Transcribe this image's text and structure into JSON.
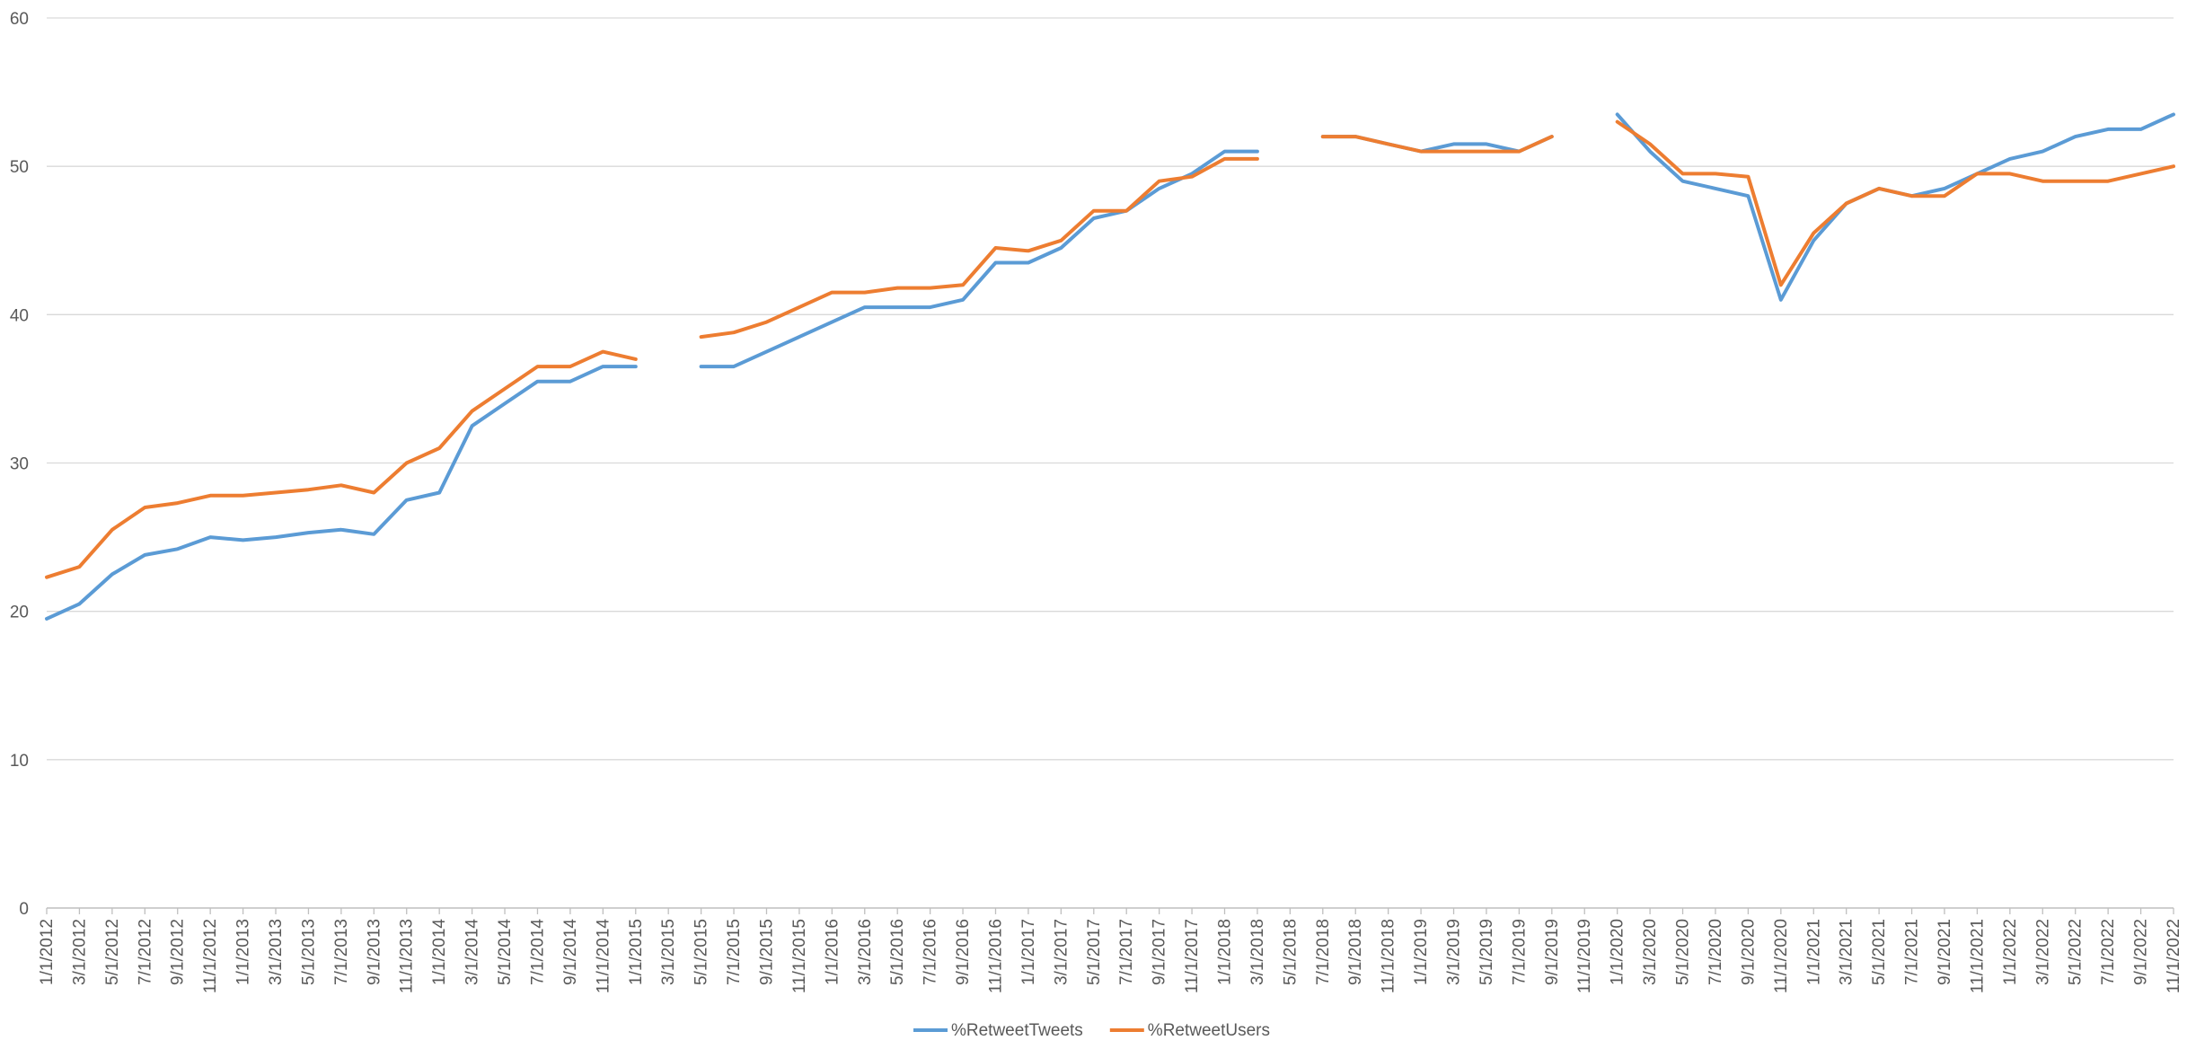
{
  "chart_data": {
    "type": "line",
    "title": "",
    "xlabel": "",
    "ylabel": "",
    "ylim": [
      0,
      60
    ],
    "yticks": [
      0,
      10,
      20,
      30,
      40,
      50,
      60
    ],
    "grid": "horizontal",
    "legend_position": "bottom",
    "x_tick_labels": [
      "1/1/2012",
      "3/1/2012",
      "5/1/2012",
      "7/1/2012",
      "9/1/2012",
      "11/1/2012",
      "1/1/2013",
      "3/1/2013",
      "5/1/2013",
      "7/1/2013",
      "9/1/2013",
      "11/1/2013",
      "1/1/2014",
      "3/1/2014",
      "5/1/2014",
      "7/1/2014",
      "9/1/2014",
      "11/1/2014",
      "1/1/2015",
      "3/1/2015",
      "5/1/2015",
      "7/1/2015",
      "9/1/2015",
      "11/1/2015",
      "1/1/2016",
      "3/1/2016",
      "5/1/2016",
      "7/1/2016",
      "9/1/2016",
      "11/1/2016",
      "1/1/2017",
      "3/1/2017",
      "5/1/2017",
      "7/1/2017",
      "9/1/2017",
      "11/1/2017",
      "1/1/2018",
      "3/1/2018",
      "5/1/2018",
      "7/1/2018",
      "9/1/2018",
      "11/1/2018",
      "1/1/2019",
      "3/1/2019",
      "5/1/2019",
      "7/1/2019",
      "9/1/2019",
      "11/1/2019",
      "1/1/2020",
      "3/1/2020",
      "5/1/2020",
      "7/1/2020",
      "9/1/2020",
      "11/1/2020",
      "1/1/2021",
      "3/1/2021",
      "5/1/2021",
      "7/1/2021",
      "9/1/2021",
      "11/1/2021",
      "1/1/2022",
      "3/1/2022",
      "5/1/2022",
      "7/1/2022",
      "9/1/2022",
      "11/1/2022"
    ],
    "x": [
      "1/1/2012",
      "3/1/2012",
      "5/1/2012",
      "7/1/2012",
      "9/1/2012",
      "11/1/2012",
      "1/1/2013",
      "3/1/2013",
      "5/1/2013",
      "7/1/2013",
      "9/1/2013",
      "11/1/2013",
      "1/1/2014",
      "3/1/2014",
      "5/1/2014",
      "7/1/2014",
      "9/1/2014",
      "11/1/2014",
      "1/1/2015",
      "3/1/2015",
      "5/1/2015",
      "7/1/2015",
      "9/1/2015",
      "11/1/2015",
      "1/1/2016",
      "3/1/2016",
      "5/1/2016",
      "7/1/2016",
      "9/1/2016",
      "11/1/2016",
      "1/1/2017",
      "3/1/2017",
      "5/1/2017",
      "7/1/2017",
      "9/1/2017",
      "11/1/2017",
      "1/1/2018",
      "3/1/2018",
      "5/1/2018",
      "7/1/2018",
      "9/1/2018",
      "11/1/2018",
      "1/1/2019",
      "3/1/2019",
      "5/1/2019",
      "7/1/2019",
      "9/1/2019",
      "11/1/2019",
      "1/1/2020",
      "3/1/2020",
      "5/1/2020",
      "7/1/2020",
      "9/1/2020",
      "11/1/2020",
      "1/1/2021",
      "3/1/2021",
      "5/1/2021",
      "7/1/2021",
      "9/1/2021",
      "11/1/2021",
      "1/1/2022",
      "3/1/2022",
      "5/1/2022",
      "7/1/2022",
      "9/1/2022",
      "11/1/2022"
    ],
    "series": [
      {
        "name": "%RetweetTweets",
        "color": "#5B9BD5",
        "values": [
          19.5,
          20.5,
          22.5,
          23.8,
          24.2,
          25.0,
          24.8,
          25.0,
          25.3,
          25.5,
          25.2,
          27.5,
          28.0,
          32.5,
          34.0,
          35.5,
          35.5,
          36.5,
          36.5,
          null,
          36.5,
          36.5,
          37.5,
          38.5,
          39.5,
          40.5,
          40.5,
          40.5,
          41.0,
          43.5,
          43.5,
          44.5,
          46.5,
          47.0,
          48.5,
          49.5,
          51.0,
          51.0,
          null,
          52.0,
          52.0,
          51.5,
          51.0,
          51.5,
          51.5,
          51.0,
          52.0,
          null,
          53.5,
          51.0,
          49.0,
          48.5,
          48.0,
          41.0,
          45.0,
          47.5,
          48.5,
          48.0,
          48.5,
          49.5,
          50.5,
          51.0,
          52.0,
          52.5,
          52.5,
          53.5
        ]
      },
      {
        "name": "%RetweetUsers",
        "color": "#ED7D31",
        "values": [
          22.3,
          23.0,
          25.5,
          27.0,
          27.3,
          27.8,
          27.8,
          28.0,
          28.2,
          28.5,
          28.0,
          30.0,
          31.0,
          33.5,
          35.0,
          36.5,
          36.5,
          37.5,
          37.0,
          null,
          38.5,
          38.8,
          39.5,
          40.5,
          41.5,
          41.5,
          41.8,
          41.8,
          42.0,
          44.5,
          44.3,
          45.0,
          47.0,
          47.0,
          49.0,
          49.3,
          50.5,
          50.5,
          null,
          52.0,
          52.0,
          51.5,
          51.0,
          51.0,
          51.0,
          51.0,
          52.0,
          null,
          53.0,
          51.5,
          49.5,
          49.5,
          49.3,
          42.0,
          45.5,
          47.5,
          48.5,
          48.0,
          48.0,
          49.5,
          49.5,
          49.0,
          49.0,
          49.0,
          49.5,
          50.0
        ]
      }
    ]
  }
}
